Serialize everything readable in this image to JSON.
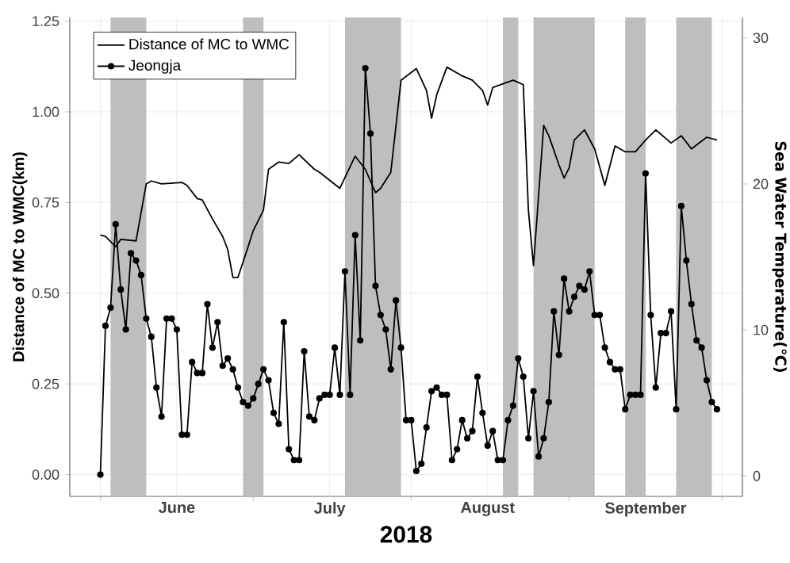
{
  "chart_data": {
    "type": "line",
    "xlabel": "2018",
    "ylabel": "Distance of MC to WMC(km)",
    "y2label": "Sea Water Temperature(℃)",
    "xlim": [
      "2018-05-26",
      "2018-10-05"
    ],
    "xticks": [
      {
        "value": "2018-06-01",
        "label": null
      },
      {
        "value": "2018-06-16",
        "label": "June"
      },
      {
        "value": "2018-07-01",
        "label": null
      },
      {
        "value": "2018-07-16",
        "label": "July"
      },
      {
        "value": "2018-08-01",
        "label": null
      },
      {
        "value": "2018-08-16",
        "label": "August"
      },
      {
        "value": "2018-09-01",
        "label": null
      },
      {
        "value": "2018-09-16",
        "label": "September"
      },
      {
        "value": "2018-10-01",
        "label": null
      }
    ],
    "ylim": [
      -0.06,
      1.26
    ],
    "yticks": [
      {
        "value": 0,
        "label": "0.00"
      },
      {
        "value": 0.25,
        "label": "0.25"
      },
      {
        "value": 0.5,
        "label": "0.50"
      },
      {
        "value": 0.75,
        "label": "0.75"
      },
      {
        "value": 1,
        "label": "1.00"
      },
      {
        "value": 1.25,
        "label": "1.25"
      }
    ],
    "y2lim": [
      -1.4,
      31.4
    ],
    "y2ticks": [
      0,
      10,
      20,
      30
    ],
    "grid": true,
    "legend": "top left",
    "bands": [
      {
        "axis": "x",
        "from": "2018-06-03",
        "to": "2018-06-10",
        "color": "#bebebe"
      },
      {
        "axis": "x",
        "from": "2018-06-29",
        "to": "2018-07-03",
        "color": "#bebebe"
      },
      {
        "axis": "x",
        "from": "2018-07-19",
        "to": "2018-07-30",
        "color": "#bebebe"
      },
      {
        "axis": "x",
        "from": "2018-08-19",
        "to": "2018-08-22",
        "color": "#bebebe"
      },
      {
        "axis": "x",
        "from": "2018-08-25",
        "to": "2018-09-06",
        "color": "#bebebe"
      },
      {
        "axis": "x",
        "from": "2018-09-12",
        "to": "2018-09-16",
        "color": "#bebebe"
      },
      {
        "axis": "x",
        "from": "2018-09-22",
        "to": "2018-09-29",
        "color": "#bebebe"
      }
    ],
    "series": [
      {
        "name": "Distance of MC to WMC",
        "color": "#000000",
        "axis": "y2",
        "marker": "none",
        "line_style": "solid",
        "x": [
          "2018-06-01",
          "2018-06-02",
          "2018-06-04",
          "2018-06-05",
          "2018-06-08",
          "2018-06-10",
          "2018-06-11",
          "2018-06-13",
          "2018-06-17",
          "2018-06-18",
          "2018-06-20",
          "2018-06-21",
          "2018-06-23",
          "2018-06-25",
          "2018-06-26",
          "2018-06-27",
          "2018-06-28",
          "2018-06-30",
          "2018-07-01",
          "2018-07-03",
          "2018-07-04",
          "2018-07-06",
          "2018-07-08",
          "2018-07-10",
          "2018-07-13",
          "2018-07-14",
          "2018-07-18",
          "2018-07-21",
          "2018-07-23",
          "2018-07-25",
          "2018-07-26",
          "2018-07-28",
          "2018-07-30",
          "2018-08-02",
          "2018-08-04",
          "2018-08-05",
          "2018-08-06",
          "2018-08-08",
          "2018-08-11",
          "2018-08-13",
          "2018-08-15",
          "2018-08-16",
          "2018-08-17",
          "2018-08-21",
          "2018-08-23",
          "2018-08-24",
          "2018-08-25",
          "2018-08-27",
          "2018-08-28",
          "2018-08-30",
          "2018-08-31",
          "2018-09-01",
          "2018-09-02",
          "2018-09-04",
          "2018-09-06",
          "2018-09-08",
          "2018-09-10",
          "2018-09-12",
          "2018-09-14",
          "2018-09-16",
          "2018-09-18",
          "2018-09-21",
          "2018-09-23",
          "2018-09-25",
          "2018-09-28",
          "2018-09-30"
        ],
        "values": [
          16.5,
          16.4,
          15.7,
          16.2,
          16.1,
          20.0,
          20.2,
          20.0,
          20.1,
          19.9,
          19.0,
          18.9,
          17.6,
          16.4,
          15.5,
          13.6,
          13.6,
          15.7,
          16.8,
          18.2,
          21.0,
          21.5,
          21.4,
          22.0,
          21.0,
          20.8,
          19.7,
          21.9,
          21.0,
          19.4,
          19.7,
          20.8,
          27.1,
          27.9,
          26.4,
          24.5,
          26.1,
          28.0,
          27.4,
          27.1,
          26.4,
          25.4,
          26.6,
          27.1,
          26.8,
          18.2,
          14.4,
          24.0,
          23.3,
          21.3,
          20.4,
          21.1,
          23.0,
          23.7,
          22.4,
          19.9,
          22.6,
          22.2,
          22.2,
          23.0,
          23.7,
          22.8,
          23.3,
          22.4,
          23.2,
          23.0
        ]
      },
      {
        "name": "Jeongja",
        "color": "#000000",
        "marker": "circle",
        "line_style": "solid",
        "x": [
          "2018-06-01",
          "2018-06-02",
          "2018-06-03",
          "2018-06-04",
          "2018-06-05",
          "2018-06-06",
          "2018-06-07",
          "2018-06-08",
          "2018-06-09",
          "2018-06-10",
          "2018-06-11",
          "2018-06-12",
          "2018-06-13",
          "2018-06-14",
          "2018-06-15",
          "2018-06-16",
          "2018-06-17",
          "2018-06-18",
          "2018-06-19",
          "2018-06-20",
          "2018-06-21",
          "2018-06-22",
          "2018-06-23",
          "2018-06-24",
          "2018-06-25",
          "2018-06-26",
          "2018-06-27",
          "2018-06-28",
          "2018-06-29",
          "2018-06-30",
          "2018-07-01",
          "2018-07-02",
          "2018-07-03",
          "2018-07-04",
          "2018-07-05",
          "2018-07-06",
          "2018-07-07",
          "2018-07-08",
          "2018-07-09",
          "2018-07-10",
          "2018-07-11",
          "2018-07-12",
          "2018-07-13",
          "2018-07-14",
          "2018-07-15",
          "2018-07-16",
          "2018-07-17",
          "2018-07-18",
          "2018-07-19",
          "2018-07-20",
          "2018-07-21",
          "2018-07-22",
          "2018-07-23",
          "2018-07-24",
          "2018-07-25",
          "2018-07-26",
          "2018-07-27",
          "2018-07-28",
          "2018-07-29",
          "2018-07-30",
          "2018-07-31",
          "2018-08-01",
          "2018-08-02",
          "2018-08-03",
          "2018-08-04",
          "2018-08-05",
          "2018-08-06",
          "2018-08-07",
          "2018-08-08",
          "2018-08-09",
          "2018-08-10",
          "2018-08-11",
          "2018-08-12",
          "2018-08-13",
          "2018-08-14",
          "2018-08-15",
          "2018-08-16",
          "2018-08-17",
          "2018-08-18",
          "2018-08-19",
          "2018-08-20",
          "2018-08-21",
          "2018-08-22",
          "2018-08-23",
          "2018-08-24",
          "2018-08-25",
          "2018-08-26",
          "2018-08-27",
          "2018-08-28",
          "2018-08-29",
          "2018-08-30",
          "2018-08-31",
          "2018-09-01",
          "2018-09-02",
          "2018-09-03",
          "2018-09-04",
          "2018-09-05",
          "2018-09-06",
          "2018-09-07",
          "2018-09-08",
          "2018-09-09",
          "2018-09-10",
          "2018-09-11",
          "2018-09-12",
          "2018-09-13",
          "2018-09-14",
          "2018-09-15",
          "2018-09-16",
          "2018-09-17",
          "2018-09-18",
          "2018-09-19",
          "2018-09-20",
          "2018-09-21",
          "2018-09-22",
          "2018-09-23",
          "2018-09-24",
          "2018-09-25",
          "2018-09-26",
          "2018-09-27",
          "2018-09-28",
          "2018-09-29",
          "2018-09-30"
        ],
        "values": [
          0.0,
          0.41,
          0.46,
          0.69,
          0.51,
          0.4,
          0.61,
          0.59,
          0.55,
          0.43,
          0.38,
          0.24,
          0.16,
          0.43,
          0.43,
          0.4,
          0.11,
          0.11,
          0.31,
          0.28,
          0.28,
          0.47,
          0.35,
          0.42,
          0.3,
          0.32,
          0.29,
          0.24,
          0.2,
          0.19,
          0.21,
          0.25,
          0.29,
          0.26,
          0.17,
          0.14,
          0.42,
          0.07,
          0.04,
          0.04,
          0.34,
          0.16,
          0.15,
          0.21,
          0.22,
          0.22,
          0.35,
          0.22,
          0.56,
          0.22,
          0.66,
          0.37,
          1.12,
          0.94,
          0.52,
          0.44,
          0.4,
          0.29,
          0.48,
          0.35,
          0.15,
          0.15,
          0.01,
          0.03,
          0.13,
          0.23,
          0.24,
          0.22,
          0.22,
          0.04,
          0.07,
          0.15,
          0.1,
          0.12,
          0.27,
          0.17,
          0.08,
          0.12,
          0.04,
          0.04,
          0.15,
          0.19,
          0.32,
          0.27,
          0.1,
          0.23,
          0.05,
          0.1,
          0.2,
          0.45,
          0.33,
          0.54,
          0.45,
          0.49,
          0.52,
          0.51,
          0.56,
          0.44,
          0.44,
          0.35,
          0.31,
          0.29,
          0.29,
          0.18,
          0.22,
          0.22,
          0.22,
          0.83,
          0.44,
          0.24,
          0.39,
          0.39,
          0.45,
          0.18,
          0.74,
          0.59,
          0.47,
          0.37,
          0.35,
          0.26,
          0.2,
          0.18
        ]
      }
    ]
  }
}
